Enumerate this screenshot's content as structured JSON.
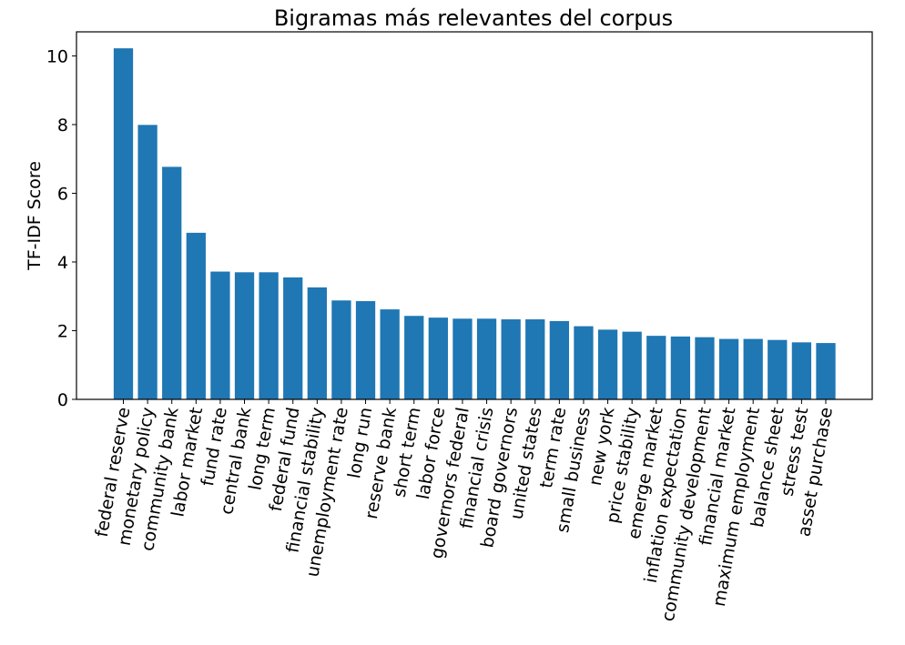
{
  "chart_data": {
    "type": "bar",
    "title": "Bigramas más relevantes del corpus",
    "xlabel": "",
    "ylabel": "TF-IDF Score",
    "ylim": [
      0,
      10.7
    ],
    "yticks": [
      0,
      2,
      4,
      6,
      8,
      10
    ],
    "grid": false,
    "bar_color": "#1f77b4",
    "categories": [
      "federal reserve",
      "monetary policy",
      "community bank",
      "labor market",
      "fund rate",
      "central bank",
      "long term",
      "federal fund",
      "financial stability",
      "unemployment rate",
      "long run",
      "reserve bank",
      "short term",
      "labor force",
      "governors federal",
      "financial crisis",
      "board governors",
      "united states",
      "term rate",
      "small business",
      "new york",
      "price stability",
      "emerge market",
      "inflation expectation",
      "community development",
      "financial market",
      "maximum employment",
      "balance sheet",
      "stress test",
      "asset purchase"
    ],
    "values": [
      10.22,
      7.99,
      6.77,
      4.85,
      3.72,
      3.7,
      3.7,
      3.55,
      3.26,
      2.88,
      2.86,
      2.62,
      2.43,
      2.38,
      2.35,
      2.35,
      2.33,
      2.33,
      2.28,
      2.13,
      2.03,
      1.97,
      1.85,
      1.83,
      1.81,
      1.76,
      1.76,
      1.73,
      1.66,
      1.64
    ]
  }
}
